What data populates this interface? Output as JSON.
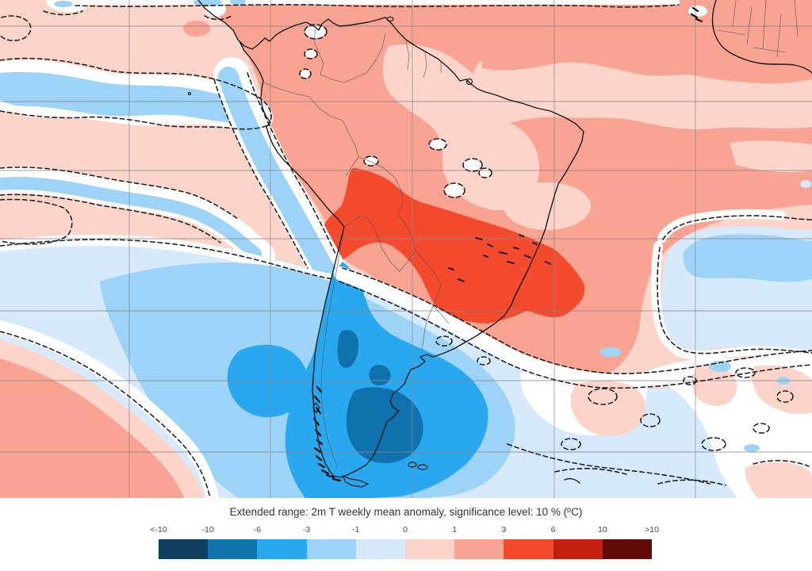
{
  "legend": {
    "title": "Extended range: 2m T weekly mean anomaly, significance level: 10 % (ºC)",
    "tick_labels": [
      "<-10",
      "-10",
      "-6",
      "-3",
      "-1",
      "0",
      "1",
      "3",
      "6",
      "10",
      ">10"
    ],
    "colors": [
      "#0d3f5e",
      "#1072ad",
      "#2aa8ef",
      "#9cd3f6",
      "#d7eafb",
      "#fcd4ca",
      "#f9a392",
      "#f44b2e",
      "#c21f0f",
      "#5f0b07"
    ]
  },
  "map": {
    "palette": {
      "warm_0_1": "#fcd4ca",
      "warm_1_3": "#f9a392",
      "warm_3_6": "#f44b2e",
      "warm_6_10": "#c21f0f",
      "warm_gt10": "#5f0b07",
      "cold_0_1": "#d7eafb",
      "cold_1_3": "#9cd3f6",
      "cold_3_6": "#2aa8ef",
      "cold_6_10": "#1072ad",
      "cold_lt10": "#0d3f5e",
      "insignificant": "#ffffff",
      "gridline": "#888888",
      "coastline": "#1b1b1b",
      "border": "#555555",
      "contour": "#222222"
    }
  }
}
